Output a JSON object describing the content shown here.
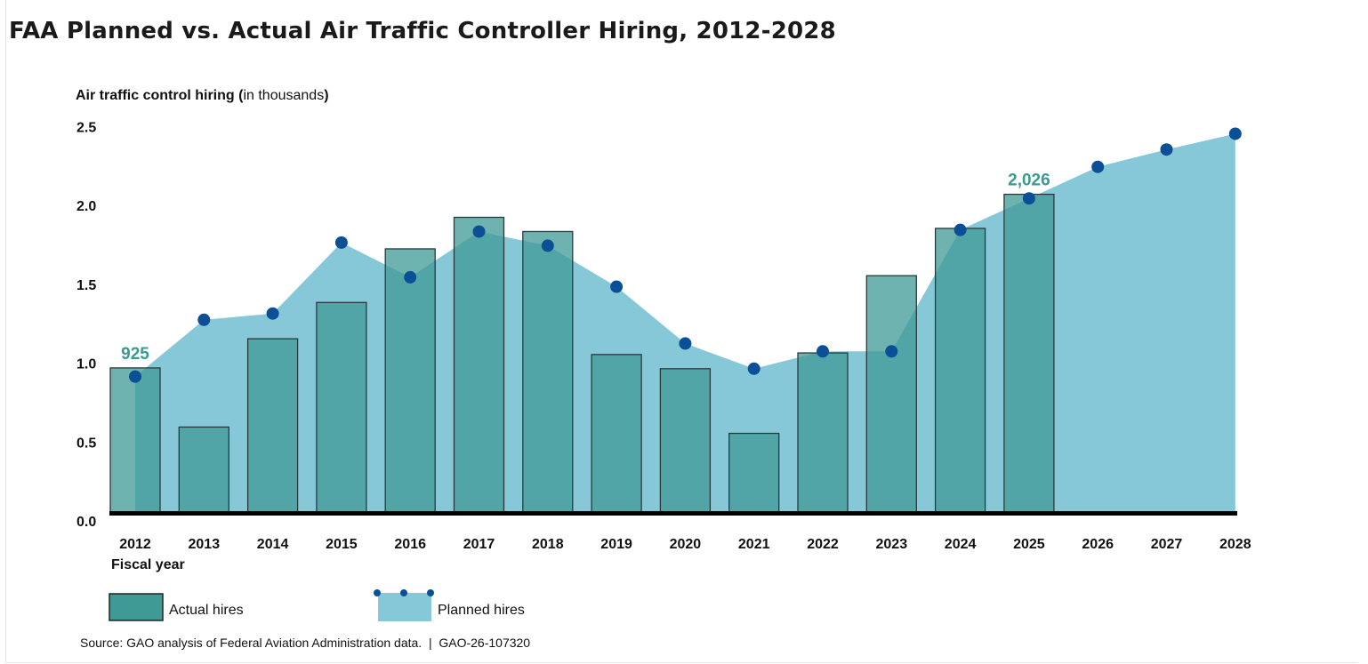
{
  "title": "FAA Planned vs. Actual Air Traffic Controller Hiring, 2012-2028",
  "chart_data": {
    "type": "bar",
    "title": "FAA Planned vs. Actual Air Traffic Controller Hiring, 2012-2028",
    "ylabel_bold": "Air traffic control hiring (",
    "ylabel_rest": "in thousands",
    "ylabel_close": ")",
    "xlabel": "Fiscal year",
    "ylim": [
      0,
      2.5
    ],
    "yticks": [
      "0.0",
      "0.5",
      "1.0",
      "1.5",
      "2.0",
      "2.5"
    ],
    "categories": [
      "2012",
      "2013",
      "2014",
      "2015",
      "2016",
      "2017",
      "2018",
      "2019",
      "2020",
      "2021",
      "2022",
      "2023",
      "2024",
      "2025",
      "2026",
      "2027",
      "2028"
    ],
    "series": [
      {
        "name": "Actual hires",
        "type": "bar",
        "color": "#3f9a95",
        "values": [
          0.925,
          0.55,
          1.11,
          1.34,
          1.68,
          1.88,
          1.79,
          1.01,
          0.92,
          0.51,
          1.02,
          1.51,
          1.81,
          2.026,
          null,
          null,
          null
        ]
      },
      {
        "name": "Planned hires",
        "type": "area",
        "color": "#86c8d8",
        "marker_color": "#0b4f96",
        "values": [
          0.87,
          1.23,
          1.27,
          1.72,
          1.5,
          1.79,
          1.7,
          1.44,
          1.08,
          0.92,
          1.03,
          1.03,
          1.8,
          2.0,
          2.2,
          2.31,
          2.41
        ]
      }
    ],
    "annotations": [
      {
        "category": "2012",
        "text": "925"
      },
      {
        "category": "2025",
        "text": "2,026"
      }
    ],
    "legend": "bottom-left",
    "grid": false
  },
  "source": "Source: GAO analysis of Federal Aviation Administration data.  |  GAO-26-107320"
}
